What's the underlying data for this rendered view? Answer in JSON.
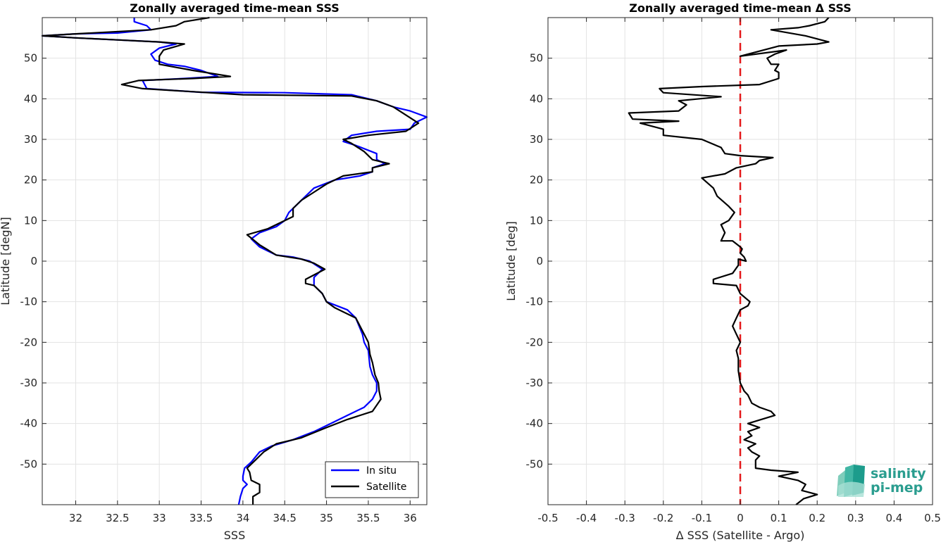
{
  "chart_data": [
    {
      "type": "line",
      "title": "Zonally averaged time-mean SSS",
      "xlabel": "SSS",
      "ylabel": "Latitude [degN]",
      "xlim": [
        31.6,
        36.2
      ],
      "ylim": [
        -60,
        60
      ],
      "xticks": [
        32,
        32.5,
        33,
        33.5,
        34,
        34.5,
        35,
        35.5,
        36
      ],
      "yticks": [
        -50,
        -40,
        -30,
        -20,
        -10,
        0,
        10,
        20,
        30,
        40,
        50
      ],
      "grid": true,
      "legend_position": "bottom-right",
      "series": [
        {
          "name": "In situ",
          "color": "#0000ff",
          "points": [
            [
              33.95,
              -60
            ],
            [
              33.97,
              -58
            ],
            [
              34.0,
              -56
            ],
            [
              34.05,
              -55
            ],
            [
              34.0,
              -54
            ],
            [
              34.0,
              -53
            ],
            [
              34.02,
              -51
            ],
            [
              34.1,
              -49.5
            ],
            [
              34.2,
              -47
            ],
            [
              34.35,
              -45.5
            ],
            [
              34.6,
              -44
            ],
            [
              34.85,
              -42
            ],
            [
              35.05,
              -40
            ],
            [
              35.25,
              -38
            ],
            [
              35.45,
              -36
            ],
            [
              35.55,
              -34
            ],
            [
              35.6,
              -32
            ],
            [
              35.6,
              -30
            ],
            [
              35.55,
              -28
            ],
            [
              35.52,
              -26
            ],
            [
              35.5,
              -22
            ],
            [
              35.45,
              -20
            ],
            [
              35.43,
              -18
            ],
            [
              35.35,
              -14
            ],
            [
              35.25,
              -12
            ],
            [
              35.0,
              -10
            ],
            [
              34.95,
              -8
            ],
            [
              34.85,
              -6
            ],
            [
              34.85,
              -4
            ],
            [
              34.95,
              -2
            ],
            [
              34.8,
              0
            ],
            [
              34.6,
              1
            ],
            [
              34.4,
              1.5
            ],
            [
              34.2,
              3.5
            ],
            [
              34.1,
              5.5
            ],
            [
              34.2,
              7
            ],
            [
              34.4,
              8.5
            ],
            [
              34.5,
              10
            ],
            [
              34.55,
              12
            ],
            [
              34.65,
              14
            ],
            [
              34.75,
              16
            ],
            [
              34.85,
              18
            ],
            [
              35.1,
              20
            ],
            [
              35.4,
              21
            ],
            [
              35.55,
              22
            ],
            [
              35.55,
              23
            ],
            [
              35.7,
              24
            ],
            [
              35.6,
              25
            ],
            [
              35.6,
              26.5
            ],
            [
              35.35,
              28.5
            ],
            [
              35.2,
              29.5
            ],
            [
              35.3,
              31
            ],
            [
              35.6,
              32
            ],
            [
              36.0,
              32.5
            ],
            [
              36.05,
              34
            ],
            [
              36.2,
              35.5
            ],
            [
              36.0,
              37
            ],
            [
              35.8,
              38
            ],
            [
              35.6,
              39.5
            ],
            [
              35.3,
              41
            ],
            [
              34.5,
              41.5
            ],
            [
              33.5,
              41.6
            ],
            [
              32.85,
              42.5
            ],
            [
              32.8,
              44.5
            ],
            [
              33.3,
              45
            ],
            [
              33.7,
              45.5
            ],
            [
              33.5,
              47
            ],
            [
              33.3,
              48
            ],
            [
              33.1,
              48.5
            ],
            [
              32.95,
              49.5
            ],
            [
              32.9,
              51
            ],
            [
              33.0,
              52.5
            ],
            [
              33.2,
              53.5
            ],
            [
              33.0,
              54
            ],
            [
              32.5,
              54.5
            ],
            [
              32.0,
              55
            ],
            [
              31.6,
              55.5
            ],
            [
              32.0,
              56
            ],
            [
              32.5,
              56.2
            ],
            [
              32.9,
              57
            ],
            [
              32.85,
              58
            ],
            [
              32.7,
              59
            ],
            [
              32.7,
              60
            ]
          ]
        },
        {
          "name": "Satellite",
          "color": "#000000",
          "points": [
            [
              34.12,
              -60
            ],
            [
              34.12,
              -58
            ],
            [
              34.2,
              -57
            ],
            [
              34.2,
              -55
            ],
            [
              34.1,
              -54
            ],
            [
              34.08,
              -52
            ],
            [
              34.05,
              -51
            ],
            [
              34.15,
              -49
            ],
            [
              34.25,
              -47
            ],
            [
              34.4,
              -45
            ],
            [
              34.7,
              -43.5
            ],
            [
              35.0,
              -41
            ],
            [
              35.25,
              -39
            ],
            [
              35.55,
              -37
            ],
            [
              35.65,
              -34
            ],
            [
              35.63,
              -32
            ],
            [
              35.62,
              -30
            ],
            [
              35.58,
              -28
            ],
            [
              35.55,
              -25
            ],
            [
              35.52,
              -23
            ],
            [
              35.5,
              -20
            ],
            [
              35.45,
              -18
            ],
            [
              35.35,
              -14
            ],
            [
              35.1,
              -11.5
            ],
            [
              35.0,
              -10
            ],
            [
              34.95,
              -8
            ],
            [
              34.85,
              -6
            ],
            [
              34.75,
              -5.5
            ],
            [
              34.75,
              -4.5
            ],
            [
              34.98,
              -2
            ],
            [
              34.85,
              -0.5
            ],
            [
              34.7,
              0.5
            ],
            [
              34.4,
              1.5
            ],
            [
              34.2,
              4
            ],
            [
              34.05,
              6.5
            ],
            [
              34.3,
              8
            ],
            [
              34.4,
              9
            ],
            [
              34.6,
              11
            ],
            [
              34.6,
              13
            ],
            [
              34.7,
              15
            ],
            [
              34.85,
              17
            ],
            [
              35.0,
              19
            ],
            [
              35.2,
              21
            ],
            [
              35.55,
              22
            ],
            [
              35.55,
              23
            ],
            [
              35.75,
              24
            ],
            [
              35.55,
              25
            ],
            [
              35.45,
              27
            ],
            [
              35.3,
              29
            ],
            [
              35.2,
              30
            ],
            [
              35.5,
              31
            ],
            [
              35.95,
              32
            ],
            [
              36.1,
              34
            ],
            [
              35.95,
              36
            ],
            [
              35.8,
              38
            ],
            [
              35.6,
              39.5
            ],
            [
              35.3,
              40.7
            ],
            [
              34.0,
              41
            ],
            [
              32.8,
              42.5
            ],
            [
              32.55,
              43.5
            ],
            [
              32.75,
              44.5
            ],
            [
              33.4,
              45
            ],
            [
              33.85,
              45.5
            ],
            [
              33.4,
              47
            ],
            [
              33.0,
              48.5
            ],
            [
              33.0,
              50.5
            ],
            [
              33.05,
              52
            ],
            [
              33.3,
              53.5
            ],
            [
              33.0,
              54
            ],
            [
              32.5,
              54.5
            ],
            [
              32.0,
              55
            ],
            [
              31.6,
              55.5
            ],
            [
              32.0,
              56
            ],
            [
              32.9,
              57
            ],
            [
              33.2,
              58
            ],
            [
              33.3,
              59
            ],
            [
              33.6,
              60
            ]
          ]
        }
      ]
    },
    {
      "type": "line",
      "title": "Zonally averaged time-mean Δ SSS",
      "xlabel": "Δ SSS (Satellite - Argo)",
      "ylabel": "Latitude [deg]",
      "xlim": [
        -0.5,
        0.5
      ],
      "ylim": [
        -60,
        60
      ],
      "xticks": [
        -0.5,
        -0.4,
        -0.3,
        -0.2,
        -0.1,
        0,
        0.1,
        0.2,
        0.3,
        0.4,
        0.5
      ],
      "yticks": [
        -50,
        -40,
        -30,
        -20,
        -10,
        0,
        10,
        20,
        30,
        40,
        50
      ],
      "grid": true,
      "reference_line": {
        "x": 0,
        "color": "#e41a1c",
        "style": "dashed"
      },
      "series": [
        {
          "color": "#000000",
          "points": [
            [
              0.145,
              -60
            ],
            [
              0.165,
              -58.5
            ],
            [
              0.2,
              -57.5
            ],
            [
              0.16,
              -56.5
            ],
            [
              0.17,
              -55
            ],
            [
              0.15,
              -54
            ],
            [
              0.1,
              -53
            ],
            [
              0.15,
              -52
            ],
            [
              0.08,
              -51.5
            ],
            [
              0.04,
              -51
            ],
            [
              0.04,
              -49
            ],
            [
              0.05,
              -48
            ],
            [
              0.03,
              -47
            ],
            [
              0.02,
              -46
            ],
            [
              0.04,
              -45
            ],
            [
              0.01,
              -44
            ],
            [
              0.03,
              -43
            ],
            [
              0.02,
              -42
            ],
            [
              0.05,
              -41
            ],
            [
              0.02,
              -40
            ],
            [
              0.09,
              -38
            ],
            [
              0.08,
              -37
            ],
            [
              0.05,
              -36
            ],
            [
              0.03,
              -35
            ],
            [
              0.02,
              -33
            ],
            [
              0.01,
              -32
            ],
            [
              0.0,
              -30
            ],
            [
              -0.005,
              -27
            ],
            [
              -0.005,
              -24
            ],
            [
              -0.01,
              -22
            ],
            [
              0.0,
              -20
            ],
            [
              -0.01,
              -18
            ],
            [
              -0.02,
              -16
            ],
            [
              -0.01,
              -14
            ],
            [
              0.0,
              -12
            ],
            [
              0.02,
              -11
            ],
            [
              0.025,
              -10
            ],
            [
              0.0,
              -8
            ],
            [
              -0.01,
              -6
            ],
            [
              -0.07,
              -5.5
            ],
            [
              -0.07,
              -4.5
            ],
            [
              -0.02,
              -3
            ],
            [
              -0.005,
              -1
            ],
            [
              -0.005,
              0.5
            ],
            [
              0.015,
              0
            ],
            [
              0.01,
              1
            ],
            [
              0.0,
              2
            ],
            [
              0.005,
              3
            ],
            [
              0.0,
              3.5
            ],
            [
              -0.02,
              5
            ],
            [
              -0.05,
              5
            ],
            [
              -0.04,
              7
            ],
            [
              -0.05,
              9
            ],
            [
              -0.03,
              10
            ],
            [
              -0.015,
              12
            ],
            [
              -0.03,
              13.5
            ],
            [
              -0.06,
              16
            ],
            [
              -0.07,
              18
            ],
            [
              -0.1,
              20.5
            ],
            [
              -0.04,
              21.5
            ],
            [
              -0.01,
              23
            ],
            [
              0.04,
              24
            ],
            [
              0.05,
              24.8
            ],
            [
              0.085,
              25.5
            ],
            [
              0.0,
              26
            ],
            [
              -0.04,
              26.5
            ],
            [
              -0.05,
              28
            ],
            [
              -0.1,
              30
            ],
            [
              -0.2,
              31
            ],
            [
              -0.2,
              32.5
            ],
            [
              -0.26,
              34
            ],
            [
              -0.16,
              34.5
            ],
            [
              -0.28,
              35
            ],
            [
              -0.29,
              36.5
            ],
            [
              -0.16,
              37
            ],
            [
              -0.14,
              38.5
            ],
            [
              -0.16,
              39.5
            ],
            [
              -0.05,
              40.5
            ],
            [
              -0.2,
              41.5
            ],
            [
              -0.21,
              42.5
            ],
            [
              -0.1,
              43
            ],
            [
              0.05,
              43.5
            ],
            [
              0.1,
              45
            ],
            [
              0.1,
              46.5
            ],
            [
              0.09,
              47
            ],
            [
              0.1,
              48.5
            ],
            [
              0.08,
              48.5
            ],
            [
              0.07,
              50
            ],
            [
              0.09,
              51
            ],
            [
              0.12,
              52
            ],
            [
              0.0,
              50.5
            ],
            [
              0.1,
              53
            ],
            [
              0.2,
              53.5
            ],
            [
              0.23,
              54
            ],
            [
              0.17,
              55.5
            ],
            [
              0.08,
              57
            ],
            [
              0.15,
              57.5
            ],
            [
              0.18,
              58
            ],
            [
              0.22,
              59
            ],
            [
              0.23,
              60
            ]
          ]
        }
      ]
    }
  ],
  "legend": {
    "items": [
      {
        "label": "In situ",
        "color": "#0000ff"
      },
      {
        "label": "Satellite",
        "color": "#000000"
      }
    ]
  },
  "logo": {
    "line1": "salinity",
    "line2": "pi-mep"
  }
}
